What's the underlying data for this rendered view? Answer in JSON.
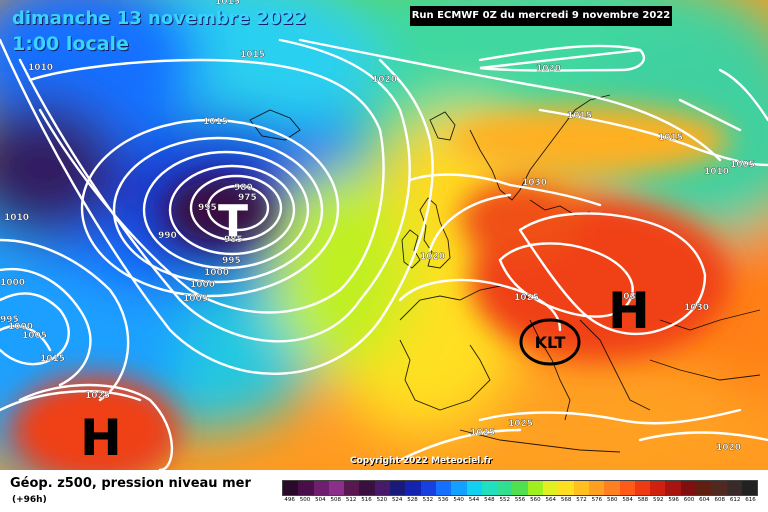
{
  "header": {
    "date": "dimanche 13 novembre 2022",
    "time": "1:00 locale",
    "run": "Run ECMWF 0Z du mercredi 9 novembre 2022"
  },
  "copyright": "Copyright 2022 Meteociel.fr",
  "legend": {
    "title": "Géop. z500, pression niveau mer",
    "subtitle": "(+96h)",
    "scale": [
      {
        "v": "496",
        "c": "#2a0a2a"
      },
      {
        "v": "500",
        "c": "#4a0f4a"
      },
      {
        "v": "504",
        "c": "#6e1f6e"
      },
      {
        "v": "508",
        "c": "#8a2f8a"
      },
      {
        "v": "512",
        "c": "#5a1850"
      },
      {
        "v": "516",
        "c": "#3a1040"
      },
      {
        "v": "520",
        "c": "#4a1a6a"
      },
      {
        "v": "524",
        "c": "#1a1a7a"
      },
      {
        "v": "528",
        "c": "#1424b0"
      },
      {
        "v": "532",
        "c": "#1840e0"
      },
      {
        "v": "536",
        "c": "#1670ff"
      },
      {
        "v": "540",
        "c": "#14a0ff"
      },
      {
        "v": "544",
        "c": "#12d0f0"
      },
      {
        "v": "548",
        "c": "#20e0c0"
      },
      {
        "v": "552",
        "c": "#30e090"
      },
      {
        "v": "556",
        "c": "#50e050"
      },
      {
        "v": "560",
        "c": "#a0f020"
      },
      {
        "v": "564",
        "c": "#e0f020"
      },
      {
        "v": "568",
        "c": "#ffe020"
      },
      {
        "v": "572",
        "c": "#ffc020"
      },
      {
        "v": "576",
        "c": "#ffa020"
      },
      {
        "v": "580",
        "c": "#ff8020"
      },
      {
        "v": "584",
        "c": "#ff5a18"
      },
      {
        "v": "588",
        "c": "#f03a14"
      },
      {
        "v": "592",
        "c": "#d02010"
      },
      {
        "v": "596",
        "c": "#a81510"
      },
      {
        "v": "600",
        "c": "#801010"
      },
      {
        "v": "604",
        "c": "#602010"
      },
      {
        "v": "608",
        "c": "#502a20"
      },
      {
        "v": "612",
        "c": "#3a2a2a"
      },
      {
        "v": "616",
        "c": "#222222"
      }
    ]
  },
  "map": {
    "high_label": "H",
    "low_label": "T",
    "marker": "KLT",
    "isobars": [
      "1010",
      "1015",
      "1015",
      "1020",
      "1020",
      "1015",
      "1015",
      "1010",
      "1005",
      "1030",
      "1015",
      "1000",
      "995",
      "985",
      "980",
      "975",
      "990",
      "995",
      "1000",
      "1005",
      "1010",
      "1020",
      "1025",
      "1035",
      "1030",
      "1000",
      "995",
      "1000",
      "1005",
      "1015",
      "1025",
      "1025",
      "1025",
      "1020"
    ]
  }
}
